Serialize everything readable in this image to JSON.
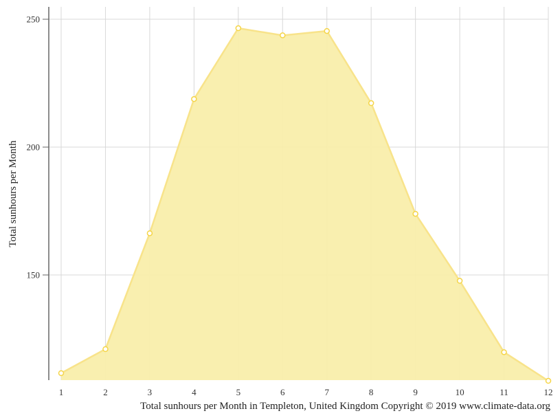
{
  "chart_data": {
    "type": "area",
    "title": "Total sunhours per Month in Templeton, United Kingdom Copyright © 2019 www.climate-data.org",
    "xlabel": "",
    "ylabel": "Total sunhours per Month",
    "categories": [
      "1",
      "2",
      "3",
      "4",
      "5",
      "6",
      "7",
      "8",
      "9",
      "10",
      "11",
      "12"
    ],
    "series": [
      {
        "name": "Total sunhours per Month",
        "values": [
          111.6,
          121.0,
          166.3,
          218.8,
          246.5,
          243.7,
          245.4,
          217.2,
          173.9,
          147.7,
          119.8,
          108.6
        ]
      }
    ],
    "yticks": [
      150,
      200,
      250
    ],
    "ylim": [
      108.6,
      254.8
    ],
    "grid": true,
    "legend": "none",
    "colors": {
      "fill": "#f9eeab",
      "line": "#f8e38a",
      "marker_stroke": "#f5d547",
      "marker_fill": "#ffffff",
      "grid": "#d8d8d8",
      "axis": "#666666"
    }
  },
  "footer": {
    "caption": "Total sunhours per Month in Templeton, United Kingdom Copyright © 2019 www.climate-data.org"
  },
  "yaxis": {
    "title": "Total sunhours per Month"
  }
}
